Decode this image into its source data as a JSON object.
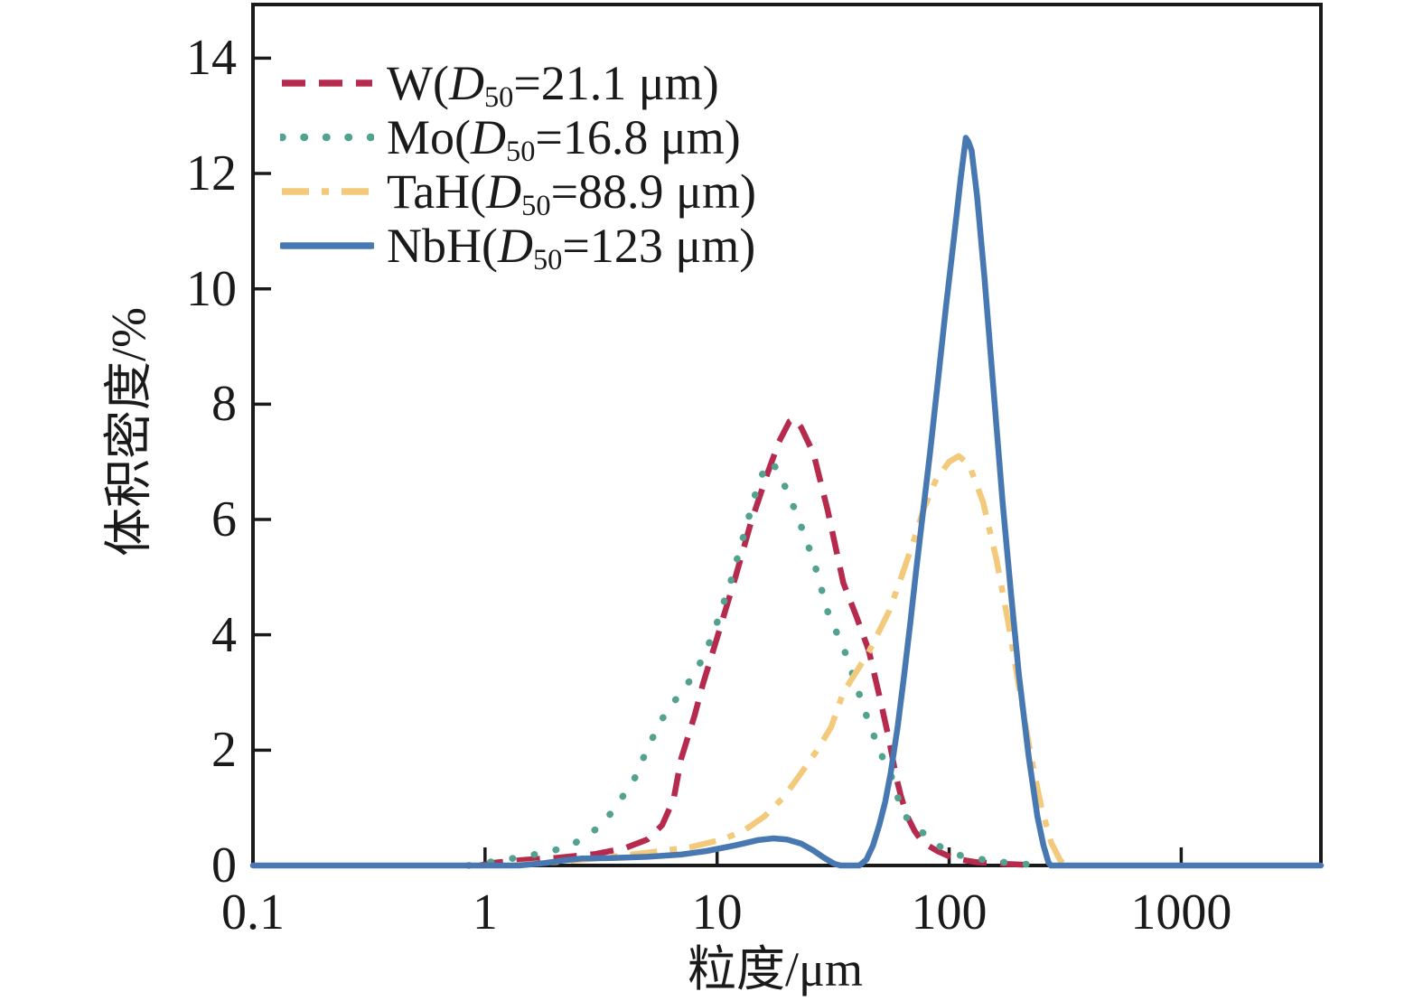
{
  "figure": {
    "background": "#ffffff",
    "axis_color": "#1a1a1a"
  },
  "axes": {
    "x_title": "粒度/μm",
    "y_title": "体积密度/%",
    "x_tick_labels": [
      "0.1",
      "1",
      "10",
      "100",
      "1000"
    ],
    "x_tick_values": [
      0.1,
      1,
      10,
      100,
      1000
    ],
    "y_tick_labels": [
      "0",
      "2",
      "4",
      "6",
      "8",
      "10",
      "12",
      "14"
    ],
    "y_tick_values": [
      0,
      2,
      4,
      6,
      8,
      10,
      12,
      14
    ]
  },
  "legend": {
    "d_symbol": "D",
    "d_subscript": "50",
    "unit": "μm",
    "items": [
      {
        "name": "W",
        "d50": "21.1",
        "color": "#b62a4e",
        "style": "dashed"
      },
      {
        "name": "Mo",
        "d50": "16.8",
        "color": "#52a28f",
        "style": "dotted"
      },
      {
        "name": "TaH",
        "d50": "88.9",
        "color": "#f3c97c",
        "style": "dashdot"
      },
      {
        "name": "NbH",
        "d50": "123",
        "color": "#4878b2",
        "style": "solid"
      }
    ]
  },
  "chart_data": {
    "type": "line",
    "title": "",
    "xlabel": "粒度/μm",
    "ylabel": "体积密度/%",
    "x_scale": "log",
    "xlim": [
      0.1,
      4000
    ],
    "ylim": [
      0,
      14.93
    ],
    "grid": false,
    "legend_position": "upper-left-inside",
    "series": [
      {
        "name": "W(D50=21.1 μm)",
        "color": "#b62a4e",
        "style": "dashed",
        "points": [
          [
            0.95,
            0
          ],
          [
            1.1,
            0.05
          ],
          [
            1.5,
            0.1
          ],
          [
            2,
            0.13
          ],
          [
            3,
            0.2
          ],
          [
            4,
            0.3
          ],
          [
            5,
            0.45
          ],
          [
            5.8,
            0.7
          ],
          [
            6.5,
            1.15
          ],
          [
            7,
            1.85
          ],
          [
            8,
            2.6
          ],
          [
            8.7,
            3.15
          ],
          [
            10,
            3.95
          ],
          [
            12,
            5.0
          ],
          [
            14,
            5.95
          ],
          [
            16.5,
            6.8
          ],
          [
            18.5,
            7.35
          ],
          [
            20.5,
            7.7
          ],
          [
            21.5,
            7.75
          ],
          [
            23,
            7.6
          ],
          [
            26,
            7.15
          ],
          [
            30,
            6.15
          ],
          [
            35,
            4.9
          ],
          [
            40,
            4.3
          ],
          [
            45,
            3.73
          ],
          [
            50,
            2.95
          ],
          [
            55,
            2.2
          ],
          [
            59,
            1.55
          ],
          [
            62,
            1.2
          ],
          [
            66,
            0.85
          ],
          [
            71,
            0.6
          ],
          [
            77,
            0.4
          ],
          [
            89,
            0.25
          ],
          [
            105,
            0.12
          ],
          [
            130,
            0.06
          ],
          [
            170,
            0.03
          ],
          [
            220,
            0.01
          ],
          [
            235,
            0
          ]
        ]
      },
      {
        "name": "Mo(D50=16.8 μm)",
        "color": "#52a28f",
        "style": "dotted",
        "points": [
          [
            0.85,
            0
          ],
          [
            1.05,
            0.06
          ],
          [
            1.5,
            0.16
          ],
          [
            2.3,
            0.32
          ],
          [
            3.2,
            0.7
          ],
          [
            4.35,
            1.45
          ],
          [
            5.1,
            2.1
          ],
          [
            6,
            2.65
          ],
          [
            7,
            3.0
          ],
          [
            8.1,
            3.35
          ],
          [
            9.6,
            4.0
          ],
          [
            11.5,
            4.95
          ],
          [
            13.5,
            5.95
          ],
          [
            15,
            6.6
          ],
          [
            16.5,
            7.0
          ],
          [
            18,
            6.9
          ],
          [
            20,
            6.5
          ],
          [
            22,
            6.1
          ],
          [
            26,
            5.3
          ],
          [
            30,
            4.4
          ],
          [
            36,
            3.65
          ],
          [
            44,
            2.6
          ],
          [
            50,
            2.0
          ],
          [
            57,
            1.5
          ],
          [
            63,
            0.9
          ],
          [
            73,
            0.65
          ],
          [
            89,
            0.35
          ],
          [
            110,
            0.18
          ],
          [
            150,
            0.08
          ],
          [
            200,
            0.03
          ],
          [
            255,
            0
          ]
        ]
      },
      {
        "name": "TaH(D50=88.9 μm)",
        "color": "#f3c97c",
        "style": "dashdot",
        "points": [
          [
            1.3,
            0
          ],
          [
            2,
            0.06
          ],
          [
            3,
            0.12
          ],
          [
            4.5,
            0.2
          ],
          [
            6,
            0.26
          ],
          [
            7.7,
            0.32
          ],
          [
            10.5,
            0.45
          ],
          [
            13,
            0.6
          ],
          [
            16,
            0.85
          ],
          [
            19.5,
            1.2
          ],
          [
            23,
            1.6
          ],
          [
            27,
            2.0
          ],
          [
            31,
            2.4
          ],
          [
            35,
            3.0
          ],
          [
            45,
            3.7
          ],
          [
            55,
            4.4
          ],
          [
            61,
            4.9
          ],
          [
            70,
            5.6
          ],
          [
            78,
            6.2
          ],
          [
            88,
            6.7
          ],
          [
            100,
            7.0
          ],
          [
            110,
            7.1
          ],
          [
            122,
            6.95
          ],
          [
            140,
            6.3
          ],
          [
            160,
            5.3
          ],
          [
            180,
            4.2
          ],
          [
            200,
            3.1
          ],
          [
            225,
            1.9
          ],
          [
            250,
            1.0
          ],
          [
            275,
            0.4
          ],
          [
            300,
            0.1
          ],
          [
            315,
            0
          ]
        ]
      },
      {
        "name": "NbH(D50=123 μm)",
        "color": "#4878b2",
        "style": "solid",
        "points": [
          [
            0.1,
            0
          ],
          [
            1.4,
            0
          ],
          [
            1.8,
            0.04
          ],
          [
            2.2,
            0.09
          ],
          [
            2.6,
            0.12
          ],
          [
            3.5,
            0.13
          ],
          [
            5,
            0.15
          ],
          [
            7,
            0.19
          ],
          [
            9,
            0.25
          ],
          [
            12,
            0.35
          ],
          [
            15,
            0.44
          ],
          [
            17.5,
            0.47
          ],
          [
            20,
            0.45
          ],
          [
            23,
            0.38
          ],
          [
            26,
            0.26
          ],
          [
            29,
            0.13
          ],
          [
            32,
            0.03
          ],
          [
            34,
            0
          ],
          [
            41,
            0
          ],
          [
            44,
            0.1
          ],
          [
            47,
            0.35
          ],
          [
            50,
            0.7
          ],
          [
            53,
            1.1
          ],
          [
            56,
            1.6
          ],
          [
            60,
            2.4
          ],
          [
            64,
            3.3
          ],
          [
            68,
            4.2
          ],
          [
            72,
            5.1
          ],
          [
            77,
            6.1
          ],
          [
            83,
            7.2
          ],
          [
            90,
            8.5
          ],
          [
            97,
            9.7
          ],
          [
            105,
            10.9
          ],
          [
            112,
            11.9
          ],
          [
            118,
            12.62
          ],
          [
            121,
            12.55
          ],
          [
            125,
            12.4
          ],
          [
            132,
            11.6
          ],
          [
            142,
            10.2
          ],
          [
            155,
            8.3
          ],
          [
            170,
            6.3
          ],
          [
            185,
            4.7
          ],
          [
            200,
            3.3
          ],
          [
            220,
            1.9
          ],
          [
            240,
            0.85
          ],
          [
            255,
            0.35
          ],
          [
            268,
            0.05
          ],
          [
            274,
            0
          ],
          [
            4000,
            0
          ]
        ]
      }
    ]
  }
}
